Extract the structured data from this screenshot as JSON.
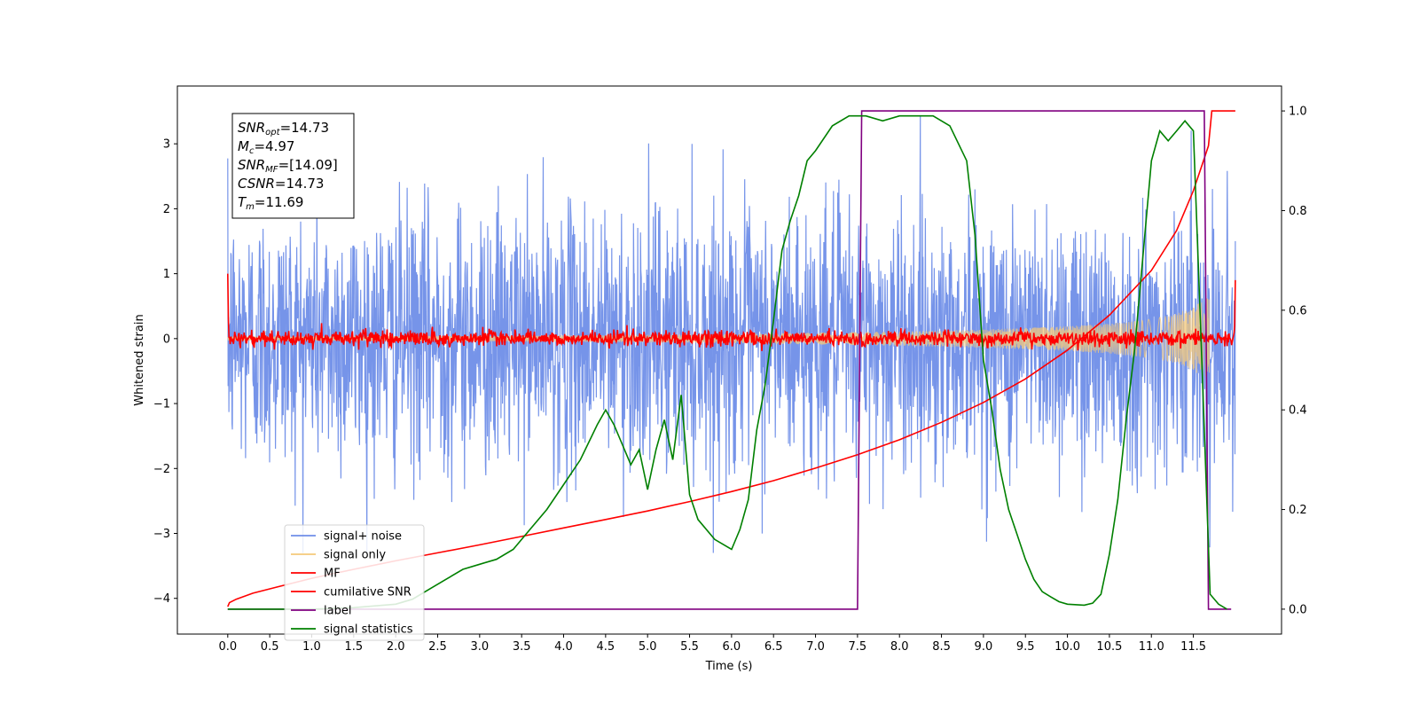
{
  "chart_data": {
    "type": "line",
    "xlabel": "Time (s)",
    "ylabel": "Whitened strain",
    "y2label": "",
    "xlim": [
      -0.6,
      12.55
    ],
    "ylim": [
      -4.55,
      3.89
    ],
    "y2lim": [
      -0.05,
      1.05
    ],
    "xticks": [
      0.0,
      0.5,
      1.0,
      1.5,
      2.0,
      2.5,
      3.0,
      3.5,
      4.0,
      4.5,
      5.0,
      5.5,
      6.0,
      6.5,
      7.0,
      7.5,
      8.0,
      8.5,
      9.0,
      9.5,
      10.0,
      10.5,
      11.0,
      11.5
    ],
    "xtick_labels": [
      "0.0",
      "0.5",
      "1.0",
      "1.5",
      "2.0",
      "2.5",
      "3.0",
      "3.5",
      "4.0",
      "4.5",
      "5.0",
      "5.5",
      "6.0",
      "6.5",
      "7.0",
      "7.5",
      "8.0",
      "8.5",
      "9.0",
      "9.5",
      "10.0",
      "10.5",
      "11.0",
      "11.5"
    ],
    "yticks": [
      -4,
      -3,
      -2,
      -1,
      0,
      1,
      2,
      3
    ],
    "ytick_labels": [
      "−4",
      "−3",
      "−2",
      "−1",
      "0",
      "1",
      "2",
      "3"
    ],
    "y2ticks": [
      0.0,
      0.2,
      0.4,
      0.6,
      0.8,
      1.0
    ],
    "y2tick_labels": [
      "0.0",
      "0.2",
      "0.4",
      "0.6",
      "0.8",
      "1.0"
    ],
    "grid": false,
    "legend_position": "lower-left",
    "series": [
      {
        "name": "signal+ noise",
        "color": "#6f8ee8",
        "axis": "left",
        "kind": "noise",
        "x_range": [
          0.0,
          12.0
        ],
        "amplitude": 1.0
      },
      {
        "name": "signal only",
        "color": "#f5c97a",
        "axis": "left",
        "kind": "chirp",
        "x_range": [
          0.0,
          11.69
        ],
        "envelope_x": [
          0.0,
          2.0,
          4.0,
          6.0,
          8.0,
          9.0,
          10.0,
          10.5,
          11.0,
          11.3,
          11.5,
          11.69
        ],
        "envelope": [
          0.03,
          0.04,
          0.05,
          0.07,
          0.11,
          0.14,
          0.19,
          0.23,
          0.3,
          0.38,
          0.5,
          0.65
        ]
      },
      {
        "name": "MF",
        "color": "#ff0000",
        "axis": "left",
        "kind": "mf",
        "x_range": [
          0.0,
          12.0
        ],
        "amplitude": 0.06
      },
      {
        "name": "cumilative SNR",
        "color": "#ff0000",
        "axis": "right",
        "x": [
          0.0,
          0.02,
          0.1,
          0.3,
          0.6,
          1.0,
          1.5,
          2.0,
          2.5,
          3.0,
          3.5,
          4.0,
          4.5,
          5.0,
          5.5,
          6.0,
          6.5,
          7.0,
          7.5,
          8.0,
          8.5,
          9.0,
          9.5,
          10.0,
          10.5,
          11.0,
          11.3,
          11.5,
          11.6,
          11.68,
          11.72,
          12.0
        ],
        "y": [
          0.005,
          0.013,
          0.02,
          0.032,
          0.045,
          0.062,
          0.08,
          0.097,
          0.113,
          0.129,
          0.146,
          0.163,
          0.18,
          0.197,
          0.216,
          0.236,
          0.258,
          0.283,
          0.31,
          0.34,
          0.375,
          0.415,
          0.462,
          0.52,
          0.59,
          0.68,
          0.76,
          0.84,
          0.89,
          0.93,
          1.0,
          1.0
        ]
      },
      {
        "name": "label",
        "color": "#800080",
        "axis": "right",
        "x": [
          0.0,
          7.5,
          7.55,
          11.63,
          11.68,
          11.95
        ],
        "y": [
          0.0,
          0.0,
          1.0,
          1.0,
          0.0,
          0.0
        ]
      },
      {
        "name": "signal statistics",
        "color": "#008000",
        "axis": "right",
        "x": [
          0.0,
          1.0,
          1.5,
          2.0,
          2.2,
          2.4,
          2.6,
          2.8,
          3.0,
          3.2,
          3.4,
          3.6,
          3.8,
          4.0,
          4.2,
          4.4,
          4.5,
          4.6,
          4.7,
          4.8,
          4.9,
          5.0,
          5.1,
          5.2,
          5.3,
          5.4,
          5.5,
          5.6,
          5.8,
          6.0,
          6.1,
          6.2,
          6.3,
          6.4,
          6.5,
          6.6,
          6.7,
          6.8,
          6.9,
          7.0,
          7.2,
          7.4,
          7.6,
          7.8,
          8.0,
          8.2,
          8.4,
          8.6,
          8.8,
          8.9,
          9.0,
          9.1,
          9.2,
          9.3,
          9.4,
          9.5,
          9.6,
          9.7,
          9.8,
          9.9,
          10.0,
          10.2,
          10.3,
          10.4,
          10.5,
          10.6,
          10.7,
          10.8,
          10.9,
          11.0,
          11.1,
          11.2,
          11.3,
          11.4,
          11.5,
          11.6,
          11.7,
          11.8,
          11.9
        ],
        "y": [
          0.0,
          0.0,
          0.003,
          0.01,
          0.02,
          0.04,
          0.06,
          0.08,
          0.09,
          0.1,
          0.12,
          0.16,
          0.2,
          0.25,
          0.3,
          0.37,
          0.4,
          0.37,
          0.33,
          0.29,
          0.32,
          0.24,
          0.32,
          0.38,
          0.3,
          0.43,
          0.23,
          0.18,
          0.14,
          0.12,
          0.16,
          0.22,
          0.36,
          0.45,
          0.58,
          0.72,
          0.78,
          0.83,
          0.9,
          0.92,
          0.97,
          0.99,
          0.99,
          0.98,
          0.99,
          0.99,
          0.99,
          0.97,
          0.9,
          0.75,
          0.5,
          0.4,
          0.28,
          0.2,
          0.15,
          0.1,
          0.06,
          0.035,
          0.025,
          0.015,
          0.01,
          0.008,
          0.012,
          0.03,
          0.11,
          0.22,
          0.38,
          0.52,
          0.71,
          0.9,
          0.96,
          0.94,
          0.96,
          0.98,
          0.96,
          0.5,
          0.03,
          0.01,
          0.0
        ]
      }
    ],
    "annotations": [
      {
        "key": "snr_opt",
        "base": "SNR",
        "sub": "opt",
        "value": "=14.73"
      },
      {
        "key": "mc",
        "base": "M",
        "sub": "c",
        "value": "=4.97"
      },
      {
        "key": "snr_mf",
        "base": "SNR",
        "sub": "MF",
        "value": "=[14.09]"
      },
      {
        "key": "csnr",
        "base": "CSNR",
        "sub": "",
        "value": "=14.73"
      },
      {
        "key": "tm",
        "base": "T",
        "sub": "m",
        "value": "=11.69"
      }
    ]
  }
}
